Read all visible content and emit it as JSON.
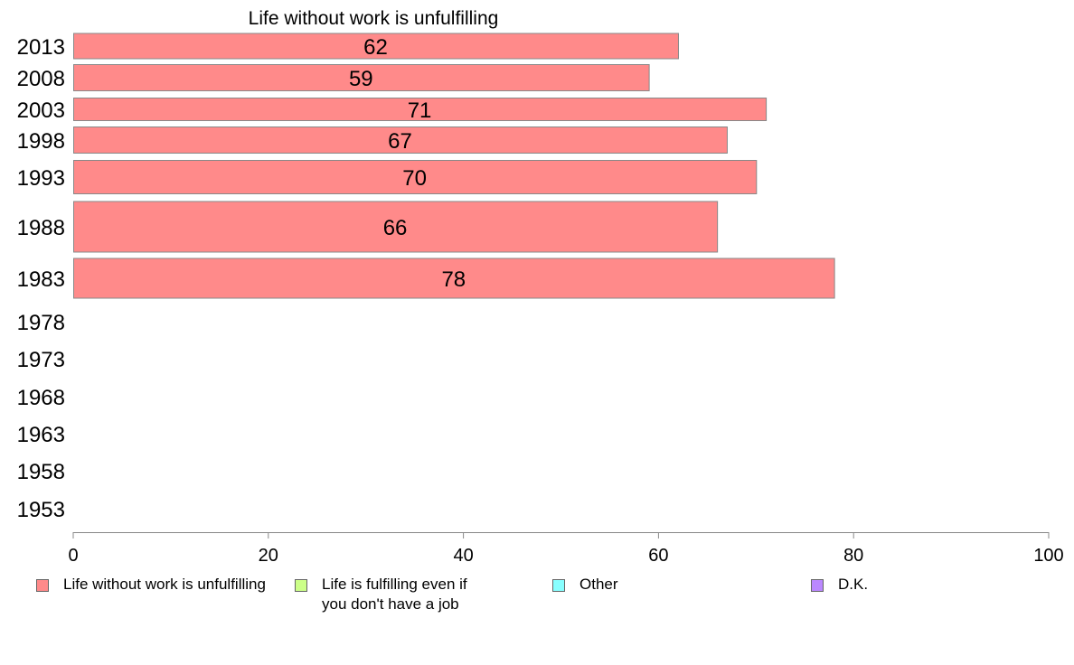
{
  "chart_data": {
    "type": "bar",
    "orientation": "horizontal",
    "title": "Life without work is unfulfilling",
    "xlabel": "",
    "ylabel": "",
    "xlim": [
      0,
      100
    ],
    "xticks": [
      0,
      20,
      40,
      60,
      80,
      100
    ],
    "categories": [
      "2013",
      "2008",
      "2003",
      "1998",
      "1993",
      "1988",
      "1983",
      "1978",
      "1973",
      "1968",
      "1963",
      "1958",
      "1953"
    ],
    "series": [
      {
        "name": "Life without work is unfulfilling",
        "color": "#ff8a8a",
        "values": [
          62,
          59,
          71,
          67,
          70,
          66,
          78,
          null,
          null,
          null,
          null,
          null,
          null
        ],
        "labels": [
          "62",
          "59",
          "71",
          "67",
          "70",
          "66",
          "78",
          "",
          "",
          "",
          "",
          "",
          ""
        ]
      }
    ],
    "legend": {
      "placement": "bottom",
      "items": [
        {
          "label": "Life without work is unfulfilling",
          "color": "#ff8a8a"
        },
        {
          "label": "Life is fulfilling even if\nyou don't have a job",
          "color": "#ccff88"
        },
        {
          "label": "Other",
          "color": "#88ffff"
        },
        {
          "label": "D.K.",
          "color": "#bb88ff"
        }
      ]
    },
    "grid": false
  }
}
